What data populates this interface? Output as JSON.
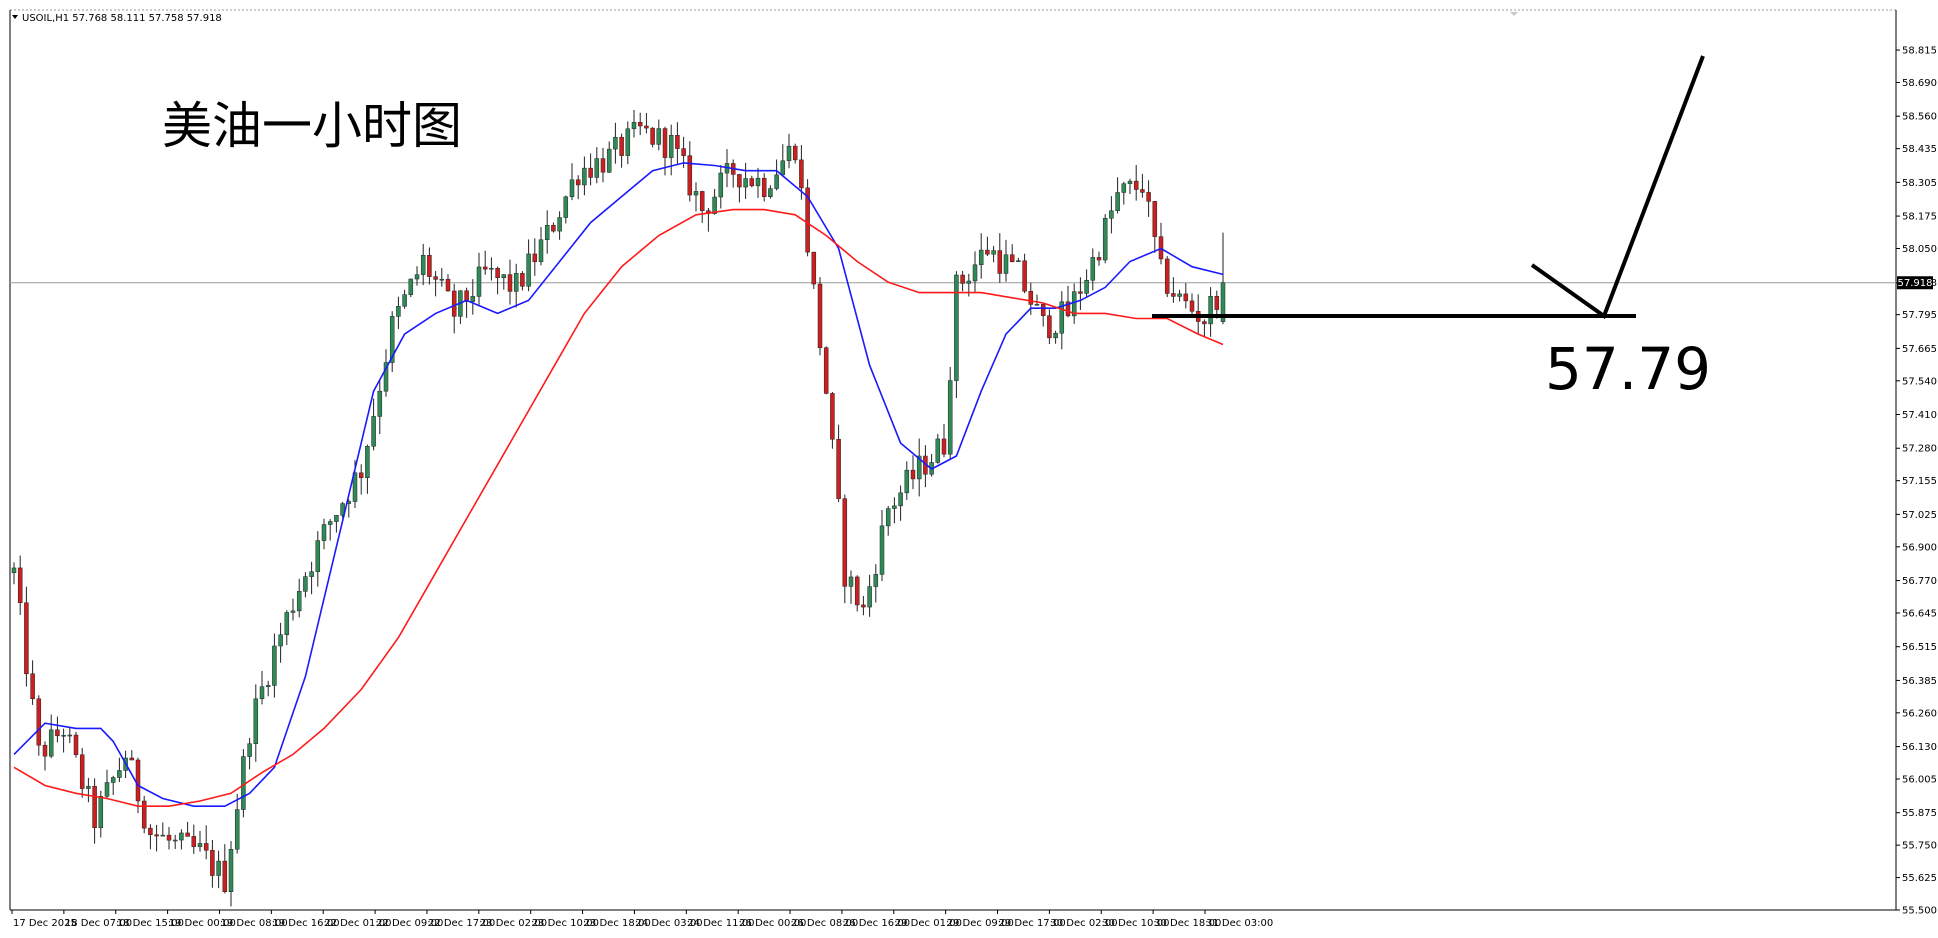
{
  "header": {
    "symbol": "USOIL,H1",
    "ohlc": "57.768 58.111 57.758 57.918",
    "full_text": "USOIL,H1  57.768 58.111 57.758 57.918"
  },
  "annotation": {
    "title": "美油一小时图",
    "level_text": "57.79"
  },
  "price_marker": "57.918",
  "colors": {
    "bull": "#2e8b57",
    "bear": "#cc1f1f",
    "fast_ma": "#1a1aff",
    "slow_ma": "#ff1a1a",
    "grid": "#9a9a9a",
    "annotation": "#000000"
  },
  "chart_data": {
    "type": "candlestick",
    "title": "美油一小时图",
    "xlabel": "",
    "ylabel": "",
    "ylim": [
      55.5,
      58.9
    ],
    "grid": false,
    "y_ticks": [
      "58.815",
      "58.690",
      "58.560",
      "58.435",
      "58.305",
      "58.175",
      "58.050",
      "57.918",
      "57.795",
      "57.665",
      "57.540",
      "57.410",
      "57.280",
      "57.155",
      "57.025",
      "56.900",
      "56.770",
      "56.645",
      "56.515",
      "56.385",
      "56.260",
      "56.130",
      "56.005",
      "55.875",
      "55.750",
      "55.625",
      "55.500"
    ],
    "x_labels": [
      "17 Dec 2025",
      "18 Dec 07:00",
      "18 Dec 15:00",
      "19 Dec 00:00",
      "19 Dec 08:00",
      "19 Dec 16:00",
      "22 Dec 01:00",
      "22 Dec 09:00",
      "22 Dec 17:00",
      "23 Dec 02:00",
      "23 Dec 10:00",
      "23 Dec 18:00",
      "24 Dec 03:00",
      "24 Dec 11:00",
      "26 Dec 00:00",
      "26 Dec 08:00",
      "26 Dec 16:00",
      "29 Dec 01:00",
      "29 Dec 09:00",
      "29 Dec 17:00",
      "30 Dec 02:00",
      "30 Dec 10:00",
      "30 Dec 18:00",
      "31 Dec 03:00"
    ],
    "current_price": 57.918,
    "horizontal_level": 57.79,
    "waypoints": [
      [
        0,
        56.8
      ],
      [
        4,
        56.1
      ],
      [
        8,
        56.2
      ],
      [
        13,
        55.85
      ],
      [
        18,
        56.1
      ],
      [
        22,
        55.8
      ],
      [
        26,
        55.75
      ],
      [
        30,
        55.72
      ],
      [
        34,
        55.62
      ],
      [
        38,
        56.2
      ],
      [
        42,
        56.5
      ],
      [
        46,
        56.75
      ],
      [
        51,
        57.0
      ],
      [
        56,
        57.2
      ],
      [
        61,
        57.75
      ],
      [
        66,
        58.0
      ],
      [
        71,
        57.8
      ],
      [
        76,
        57.95
      ],
      [
        81,
        57.9
      ],
      [
        86,
        58.1
      ],
      [
        91,
        58.35
      ],
      [
        96,
        58.4
      ],
      [
        101,
        58.5
      ],
      [
        106,
        58.45
      ],
      [
        111,
        58.2
      ],
      [
        116,
        58.35
      ],
      [
        121,
        58.3
      ],
      [
        126,
        58.45
      ],
      [
        131,
        57.5
      ],
      [
        134,
        56.8
      ],
      [
        137,
        56.65
      ],
      [
        141,
        57.05
      ],
      [
        146,
        57.2
      ],
      [
        150,
        57.3
      ],
      [
        152,
        57.9
      ],
      [
        157,
        58.05
      ],
      [
        162,
        57.95
      ],
      [
        166,
        57.75
      ],
      [
        170,
        57.8
      ],
      [
        174,
        58.0
      ],
      [
        178,
        58.25
      ],
      [
        182,
        58.3
      ],
      [
        185,
        57.95
      ],
      [
        188,
        57.85
      ],
      [
        192,
        57.78
      ],
      [
        195,
        57.92
      ]
    ],
    "series": [
      {
        "name": "",
        "color": "#1a1aff",
        "smoothing": 10,
        "values": [
          [
            0,
            56.1
          ],
          [
            5,
            56.22
          ],
          [
            10,
            56.2
          ],
          [
            14,
            56.2
          ],
          [
            16,
            56.15
          ],
          [
            20,
            55.98
          ],
          [
            24,
            55.93
          ],
          [
            29,
            55.9
          ],
          [
            34,
            55.9
          ],
          [
            38,
            55.95
          ],
          [
            42,
            56.05
          ],
          [
            47,
            56.4
          ],
          [
            52,
            56.9
          ],
          [
            58,
            57.5
          ],
          [
            63,
            57.72
          ],
          [
            68,
            57.8
          ],
          [
            73,
            57.85
          ],
          [
            78,
            57.8
          ],
          [
            83,
            57.85
          ],
          [
            88,
            58.0
          ],
          [
            93,
            58.15
          ],
          [
            98,
            58.25
          ],
          [
            103,
            58.35
          ],
          [
            108,
            58.38
          ],
          [
            113,
            58.37
          ],
          [
            118,
            58.35
          ],
          [
            123,
            58.35
          ],
          [
            128,
            58.25
          ],
          [
            133,
            58.05
          ],
          [
            138,
            57.6
          ],
          [
            143,
            57.3
          ],
          [
            148,
            57.2
          ],
          [
            152,
            57.25
          ],
          [
            156,
            57.5
          ],
          [
            160,
            57.72
          ],
          [
            164,
            57.82
          ],
          [
            168,
            57.82
          ],
          [
            172,
            57.85
          ],
          [
            176,
            57.9
          ],
          [
            180,
            58.0
          ],
          [
            185,
            58.05
          ],
          [
            190,
            57.98
          ],
          [
            195,
            57.95
          ]
        ]
      },
      {
        "name": "",
        "color": "#ff1a1a",
        "smoothing": 30,
        "values": [
          [
            0,
            56.05
          ],
          [
            5,
            55.98
          ],
          [
            10,
            55.95
          ],
          [
            15,
            55.93
          ],
          [
            20,
            55.9
          ],
          [
            25,
            55.9
          ],
          [
            30,
            55.92
          ],
          [
            35,
            55.95
          ],
          [
            40,
            56.03
          ],
          [
            45,
            56.1
          ],
          [
            50,
            56.2
          ],
          [
            56,
            56.35
          ],
          [
            62,
            56.55
          ],
          [
            68,
            56.8
          ],
          [
            74,
            57.05
          ],
          [
            80,
            57.3
          ],
          [
            86,
            57.55
          ],
          [
            92,
            57.8
          ],
          [
            98,
            57.98
          ],
          [
            104,
            58.1
          ],
          [
            110,
            58.18
          ],
          [
            116,
            58.2
          ],
          [
            121,
            58.2
          ],
          [
            126,
            58.18
          ],
          [
            131,
            58.1
          ],
          [
            136,
            58.0
          ],
          [
            141,
            57.92
          ],
          [
            146,
            57.88
          ],
          [
            151,
            57.88
          ],
          [
            156,
            57.88
          ],
          [
            161,
            57.86
          ],
          [
            166,
            57.84
          ],
          [
            171,
            57.8
          ],
          [
            176,
            57.8
          ],
          [
            181,
            57.78
          ],
          [
            186,
            57.78
          ],
          [
            191,
            57.72
          ],
          [
            195,
            57.68
          ]
        ]
      }
    ]
  }
}
